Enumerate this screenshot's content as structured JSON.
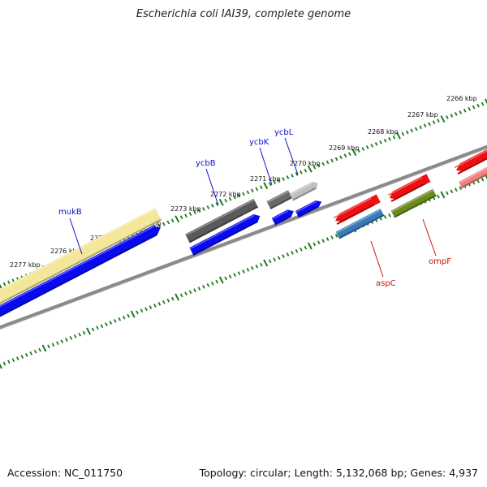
{
  "title": "Escherichia coli IAI39, complete genome",
  "footer": {
    "accession": "Accession: NC_011750",
    "summary": "Topology: circular; Length: 5,132,068 bp; Genes: 4,937"
  },
  "colors": {
    "background": "#ffffff",
    "backbone": "#8a8a8a",
    "ticks": "#1e7a1e",
    "forward_label": "#1010cc",
    "reverse_label": "#cc1010"
  },
  "ruler": {
    "unit": "kbp",
    "tick_labels": [
      "2266 kbp",
      "2267 kbp",
      "2268 kbp",
      "2269 kbp",
      "2270 kbp",
      "2271 kbp",
      "2272 kbp",
      "2273 kbp",
      "2274 kbp",
      "2275 kbp",
      "2276 kbp",
      "2277 kbp"
    ]
  },
  "genes": [
    {
      "label": "mukB",
      "strand": "forward",
      "color": "#f2e79a"
    },
    {
      "label": "",
      "strand": "forward",
      "color": "#0a0af0"
    },
    {
      "label": "ycbB",
      "strand": "forward",
      "color": "#5a5a5a"
    },
    {
      "label": "",
      "strand": "forward",
      "color": "#0a0af0"
    },
    {
      "label": "ycbK",
      "strand": "forward",
      "color": "#6a6a6a"
    },
    {
      "label": "",
      "strand": "forward",
      "color": "#0a0af0"
    },
    {
      "label": "ycbL",
      "strand": "forward",
      "color": "#c0c0c0"
    },
    {
      "label": "",
      "strand": "forward",
      "color": "#0a0af0"
    },
    {
      "label": "aspC",
      "strand": "reverse",
      "color": "#ee1010"
    },
    {
      "label": "",
      "strand": "reverse",
      "color": "#3a7ab8"
    },
    {
      "label": "ompF",
      "strand": "reverse",
      "color": "#ee1010"
    },
    {
      "label": "",
      "strand": "reverse",
      "color": "#6a8a1e"
    },
    {
      "label": "",
      "strand": "reverse",
      "color": "#ee1010"
    },
    {
      "label": "",
      "strand": "reverse",
      "color": "#f08080"
    }
  ]
}
